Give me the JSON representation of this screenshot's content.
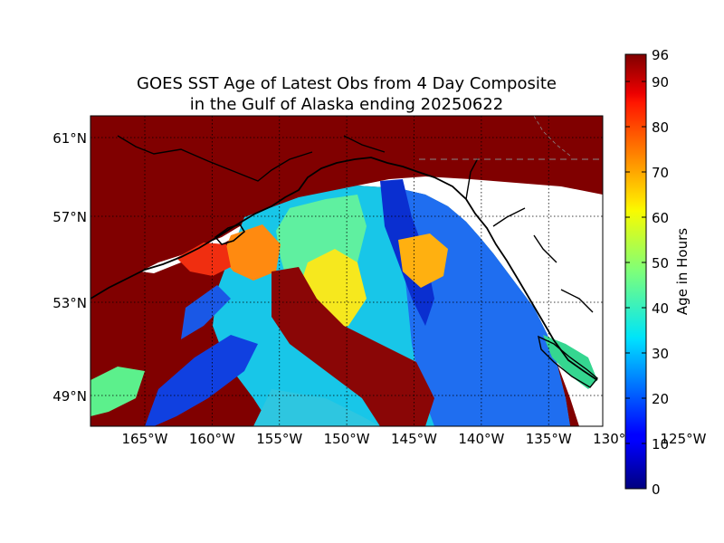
{
  "title": {
    "line1": "GOES SST Age of Latest Obs from 4 Day Composite",
    "line2": "in the Gulf of Alaska ending 20250622"
  },
  "map": {
    "lon_range": [
      -170,
      -122
    ],
    "lat_range": [
      46,
      62
    ],
    "lat_ticks": [
      {
        "value": 61,
        "label": "61°N"
      },
      {
        "value": 57,
        "label": "57°N"
      },
      {
        "value": 53,
        "label": "53°N"
      },
      {
        "value": 49,
        "label": "49°N"
      }
    ],
    "lon_ticks": [
      {
        "value": -165,
        "label": "165°W"
      },
      {
        "value": -160,
        "label": "160°W"
      },
      {
        "value": -155,
        "label": "155°W"
      },
      {
        "value": -150,
        "label": "150°W"
      },
      {
        "value": -145,
        "label": "145°W"
      },
      {
        "value": -140,
        "label": "140°W"
      },
      {
        "value": -135,
        "label": "135°W"
      },
      {
        "value": -130,
        "label": "130°W"
      },
      {
        "value": -125,
        "label": "125°W"
      }
    ],
    "colors": {
      "stale_96h": "#800000",
      "land": "#ffffff",
      "coastline": "#000000",
      "border": "#888888"
    }
  },
  "colorbar": {
    "label": "Age in Hours",
    "min": 0,
    "max": 96,
    "ticks": [
      0,
      10,
      20,
      30,
      40,
      50,
      60,
      70,
      80,
      90,
      96
    ],
    "colormap": "jet"
  }
}
